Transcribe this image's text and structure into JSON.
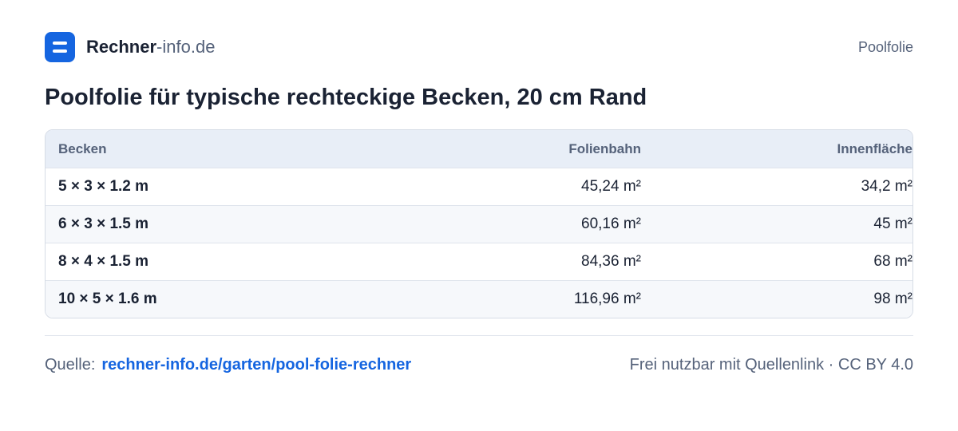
{
  "header": {
    "brand_bold": "Rechner",
    "brand_light": "-info.de",
    "section": "Poolfolie"
  },
  "title": "Poolfolie für typische rechteckige Becken, 20 cm Rand",
  "table": {
    "columns": [
      "Becken",
      "Folienbahn",
      "Innenfläche"
    ],
    "rows": [
      [
        "5 × 3 × 1.2 m",
        "45,24 m²",
        "34,2 m²"
      ],
      [
        "6 × 3 × 1.5 m",
        "60,16 m²",
        "45 m²"
      ],
      [
        "8 × 4 × 1.5 m",
        "84,36 m²",
        "68 m²"
      ],
      [
        "10 × 5 × 1.6 m",
        "116,96 m²",
        "98 m²"
      ]
    ]
  },
  "footer": {
    "source_label": "Quelle:",
    "source_link": "rechner-info.de/garten/pool-folie-rechner",
    "license_text": "Frei nutzbar mit Quellenlink",
    "separator": "·",
    "license": "CC BY 4.0"
  }
}
